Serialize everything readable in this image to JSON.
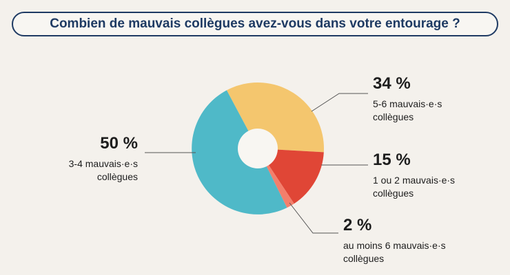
{
  "title": "Combien de mauvais collègues avez-vous dans votre entourage ?",
  "chart_data": {
    "type": "pie",
    "donut": true,
    "slices": [
      {
        "label_pct": "34 %",
        "value": 34,
        "line1": "5-6 mauvais·e·s",
        "line2": "collègues",
        "color": "#f4c66e"
      },
      {
        "label_pct": "15 %",
        "value": 15,
        "line1": "1 ou 2 mauvais·e·s",
        "line2": "collègues",
        "color": "#e04636"
      },
      {
        "label_pct": "2 %",
        "value": 2,
        "line1": "au moins 6 mauvais·e·s",
        "line2": "collègues",
        "color": "#f37f6c"
      },
      {
        "label_pct": "50 %",
        "value": 50,
        "line1": "3-4 mauvais·e·s",
        "line2": "collègues",
        "color": "#4fb9c8"
      }
    ],
    "start_angle_deg": 332
  }
}
